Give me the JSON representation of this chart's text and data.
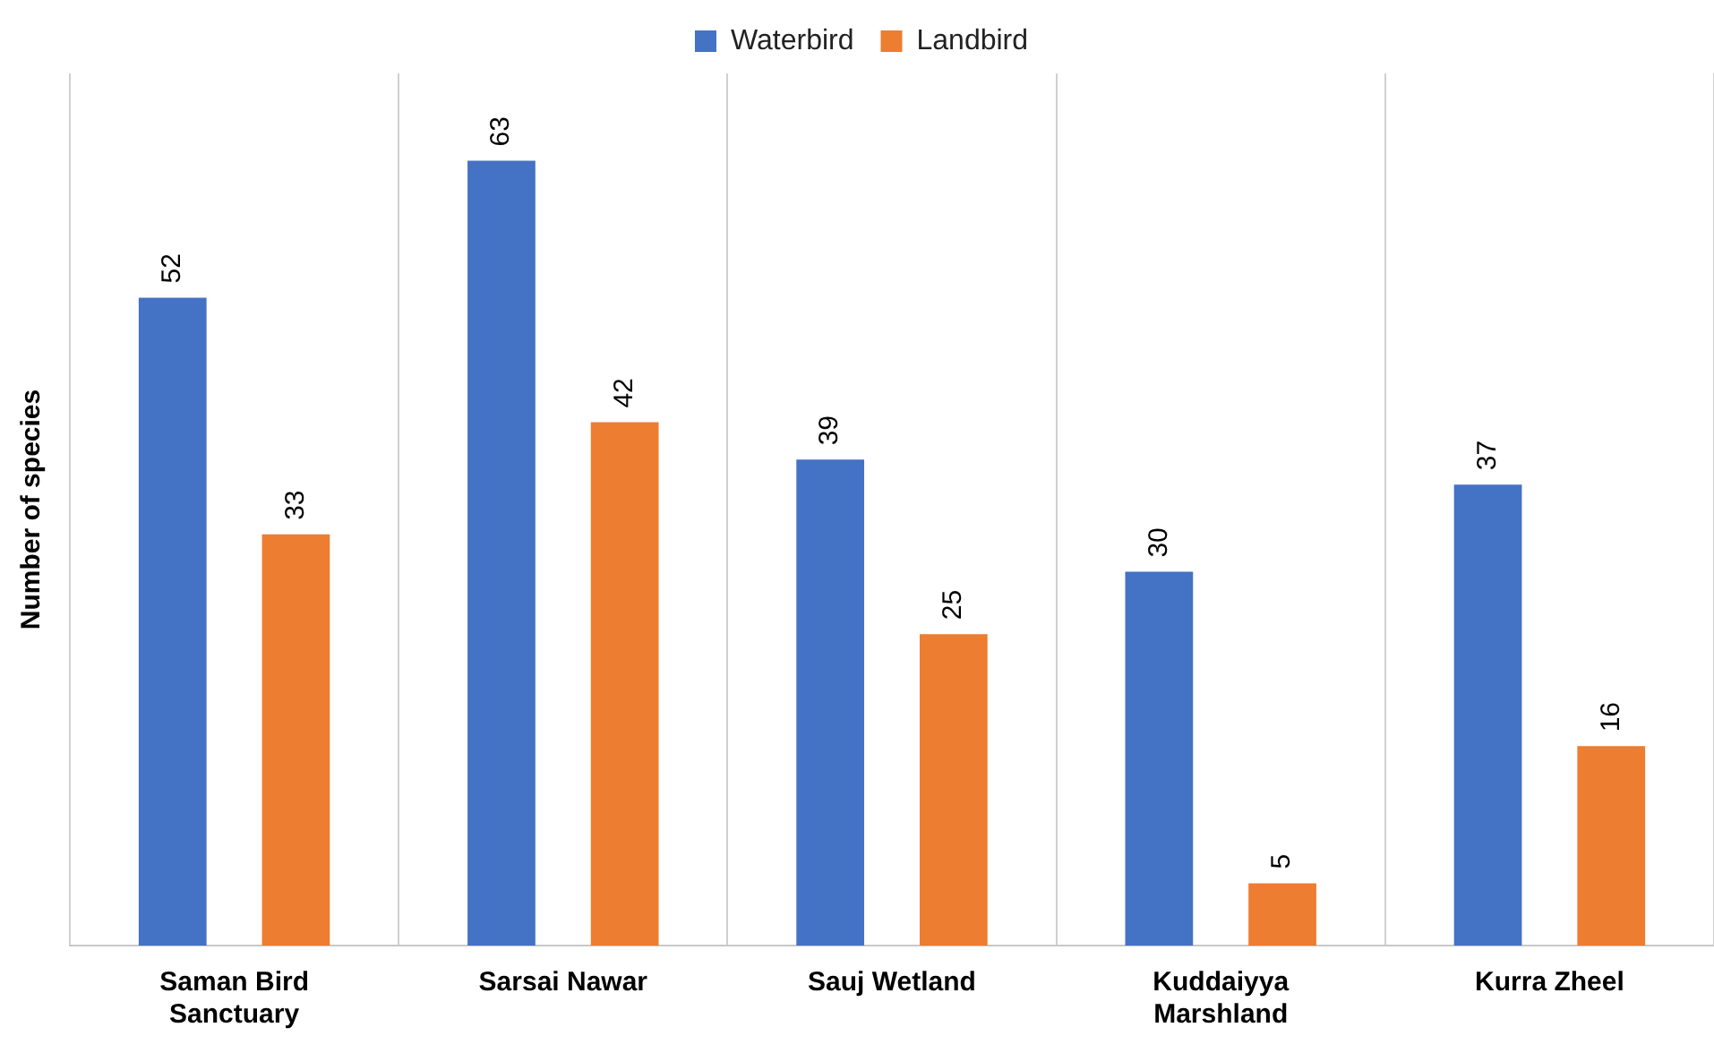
{
  "chart_data": {
    "type": "bar",
    "ylabel": "Number of species",
    "categories": [
      "Saman Bird Sanctuary",
      "Sarsai Nawar",
      "Sauj Wetland",
      "Kuddaiyya Marshland",
      "Kurra Zheel"
    ],
    "series": [
      {
        "name": "Waterbird",
        "color": "#4472c4",
        "values": [
          52,
          63,
          39,
          30,
          37
        ]
      },
      {
        "name": "Landbird",
        "color": "#ed7d31",
        "values": [
          33,
          42,
          25,
          5,
          16
        ]
      }
    ],
    "data_labels": true,
    "grid": "x",
    "legend": "top"
  }
}
